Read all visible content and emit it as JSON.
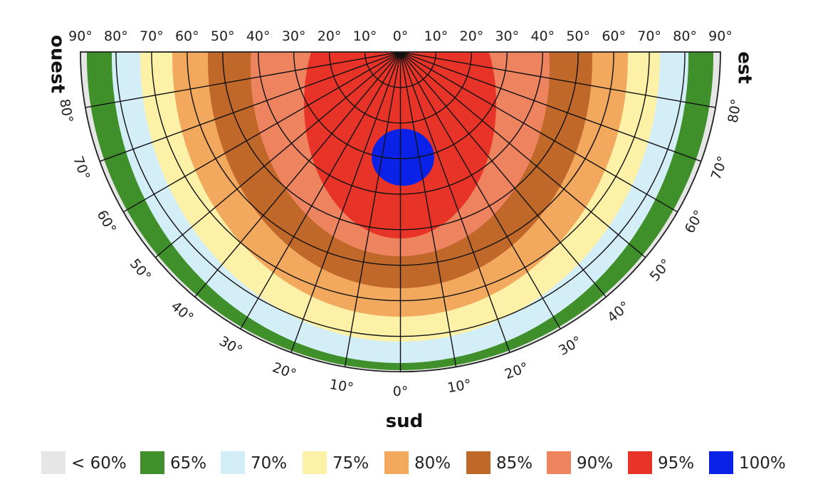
{
  "labels": {
    "west": "ouest",
    "east": "est",
    "south": "sud"
  },
  "top_ticks": [
    "90°",
    "80°",
    "70°",
    "60°",
    "50°",
    "40°",
    "30°",
    "20°",
    "10°",
    "0°",
    "10°",
    "20°",
    "30°",
    "40°",
    "50°",
    "60°",
    "70°",
    "80°",
    "90°"
  ],
  "rim_ticks_left": [
    "80°",
    "70°",
    "60°",
    "50°",
    "40°",
    "30°",
    "20°",
    "10°"
  ],
  "rim_ticks_center": "0°",
  "rim_ticks_right": [
    "10°",
    "20°",
    "30°",
    "40°",
    "50°",
    "60°",
    "70°",
    "80°"
  ],
  "legend": [
    {
      "label": "< 60%",
      "color": "#e6e6e6"
    },
    {
      "label": "65%",
      "color": "#3f8f2a"
    },
    {
      "label": "70%",
      "color": "#d4eef8"
    },
    {
      "label": "75%",
      "color": "#fdf1a8"
    },
    {
      "label": "80%",
      "color": "#f2a95e"
    },
    {
      "label": "85%",
      "color": "#c0682a"
    },
    {
      "label": "90%",
      "color": "#ee8360"
    },
    {
      "label": "95%",
      "color": "#e83428"
    },
    {
      "label": "100%",
      "color": "#0a22e8"
    }
  ]
}
